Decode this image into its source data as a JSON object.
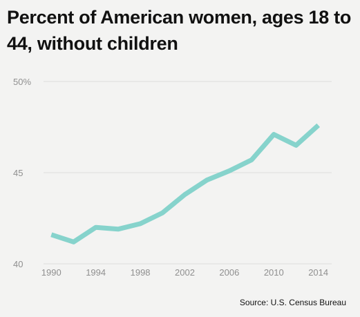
{
  "title": "Percent of American women, ages 18 to 44, without children",
  "source": "Source: U.S. Census Bureau",
  "colors": {
    "line": "#86d3cc",
    "grid": "#dcdcdc",
    "tick_text": "#8f8f8f",
    "background": "#f3f3f2"
  },
  "chart_data": {
    "type": "line",
    "title": "Percent of American women, ages 18 to 44, without children",
    "xlabel": "",
    "ylabel": "",
    "x": [
      1990,
      1992,
      1994,
      1996,
      1998,
      2000,
      2002,
      2004,
      2006,
      2008,
      2010,
      2012,
      2014
    ],
    "series": [
      {
        "values": [
          41.6,
          41.2,
          42.0,
          41.9,
          42.2,
          42.8,
          43.8,
          44.6,
          45.1,
          45.7,
          47.1,
          46.5,
          47.6
        ]
      }
    ],
    "xlim": [
      1989.3,
      2015.2
    ],
    "ylim": [
      40,
      50
    ],
    "x_ticks": [
      1990,
      1994,
      1998,
      2002,
      2006,
      2010,
      2014
    ],
    "x_tick_labels": [
      "1990",
      "1994",
      "1998",
      "2002",
      "2006",
      "2010",
      "2014"
    ],
    "y_ticks": [
      40,
      45,
      50
    ],
    "y_tick_labels": [
      "40",
      "45",
      "50%"
    ],
    "grid": "horizontal",
    "legend": "none"
  }
}
